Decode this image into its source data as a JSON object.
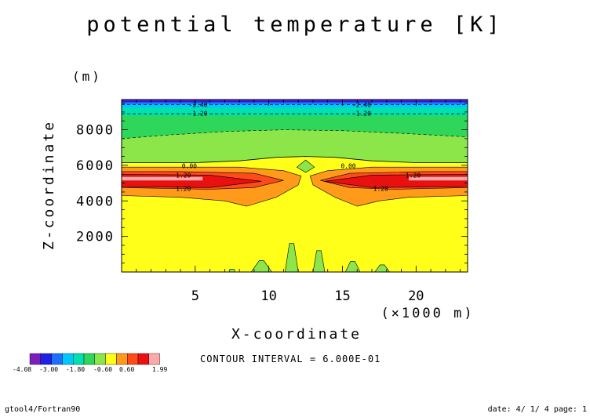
{
  "title": "potential temperature [K]",
  "chart_data": {
    "type": "heatmap",
    "title": "potential temperature [K]",
    "xlabel": "X-coordinate",
    "x_unit_label": "(×1000 m)",
    "ylabel": "Z-coordinate",
    "y_unit_label": "(m)",
    "xlim": [
      0,
      23.5
    ],
    "ylim": [
      0,
      9700
    ],
    "x_ticks": [
      5,
      10,
      15,
      20
    ],
    "x_tick_labels": [
      "5",
      "10",
      "15",
      "20"
    ],
    "y_ticks": [
      2000,
      4000,
      6000,
      8000
    ],
    "y_tick_labels": [
      "2000",
      "4000",
      "6000",
      "8000"
    ],
    "contour_interval_text": "CONTOUR INTERVAL = 6.000E-01",
    "contour_labels": [
      {
        "text": "-2.40",
        "x": 5.2,
        "y": 9420
      },
      {
        "text": "-2.40",
        "x": 16.3,
        "y": 9420
      },
      {
        "text": "-1.20",
        "x": 5.2,
        "y": 8920
      },
      {
        "text": "-1.20",
        "x": 16.3,
        "y": 8920
      },
      {
        "text": "0.00",
        "x": 4.6,
        "y": 5980
      },
      {
        "text": "0.00",
        "x": 15.4,
        "y": 5980
      },
      {
        "text": "1.20",
        "x": 4.2,
        "y": 5440
      },
      {
        "text": "1.20",
        "x": 19.8,
        "y": 5440
      },
      {
        "text": "1.20",
        "x": 4.2,
        "y": 4700
      },
      {
        "text": "1.20",
        "x": 17.6,
        "y": 4700
      }
    ],
    "colorbar": {
      "levels": [
        -4.08,
        -3.6,
        -3.0,
        -2.4,
        -1.8,
        -1.2,
        -0.6,
        0,
        0.6,
        1.2,
        1.8,
        1.99
      ],
      "colors": [
        "#7a1fb8",
        "#1f1fe8",
        "#1f6fff",
        "#00c8ff",
        "#00e0b0",
        "#2ed65a",
        "#8ce64a",
        "#ffff1a",
        "#ff9a1a",
        "#ff4a1a",
        "#e81010",
        "#ffaaaa"
      ],
      "tick_labels": [
        "-4.08",
        "-3.00",
        "-1.80",
        "-0.60",
        "0.60",
        "1.99"
      ]
    },
    "colors": {
      "neg_top_purple": "#7a1fb8",
      "neg_blue": "#1f1fe8",
      "neg_lightblue": "#1f6fff",
      "cyan": "#00c8ff",
      "teal": "#00e0b0",
      "green": "#2ed65a",
      "lightgreen": "#8ce64a",
      "yellow": "#ffff1a",
      "orange": "#ff9a1a",
      "red_orange": "#ff4a1a",
      "red": "#e81010",
      "pink": "#ffaaaa"
    }
  },
  "footer": {
    "left": "gtool4/Fortran90",
    "right": "date: 4/ 1/ 4 page: 1"
  }
}
